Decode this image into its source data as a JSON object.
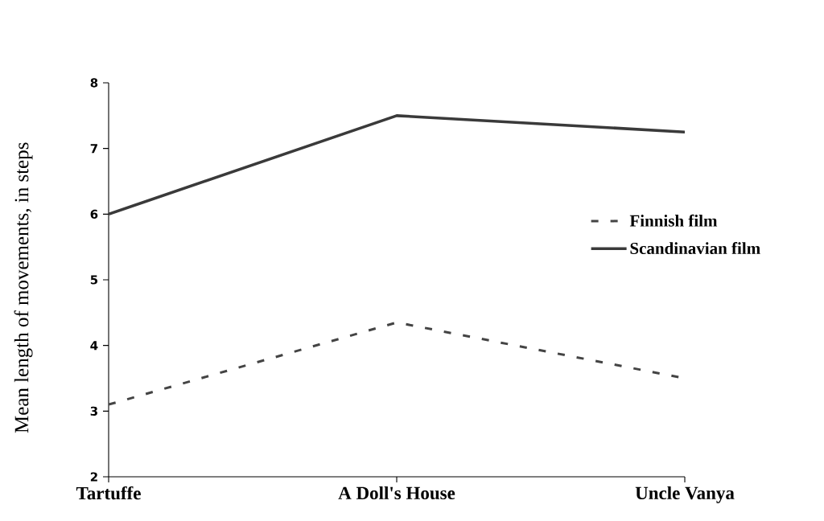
{
  "chart_data": {
    "type": "line",
    "ylabel": "Mean length of movements, in steps",
    "categories": [
      "Tartuffe",
      "A Doll's House",
      "Uncle Vanya"
    ],
    "series": [
      {
        "name": "Finnish film",
        "color": "#444444",
        "line_style": "dashed",
        "values": [
          3.1,
          4.35,
          3.5
        ]
      },
      {
        "name": "Scandinavian film",
        "color": "#3a3a3a",
        "line_style": "solid",
        "values": [
          6.0,
          7.5,
          7.25
        ]
      }
    ],
    "ylim": [
      2,
      8
    ],
    "yticks": [
      2,
      3,
      4,
      5,
      6,
      7,
      8
    ],
    "legend": "right"
  }
}
